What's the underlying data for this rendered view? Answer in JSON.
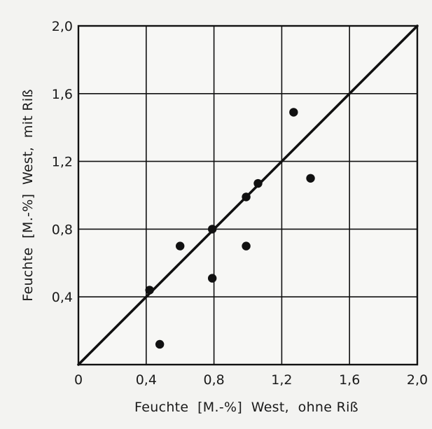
{
  "chart_data": {
    "type": "scatter",
    "title": "",
    "xlabel": "Feuchte  [M.-%]  West,  ohne Riß",
    "ylabel": "Feuchte  [M.-%]  West,  mit Riß",
    "xlim": [
      0,
      2.0
    ],
    "ylim": [
      0,
      2.0
    ],
    "xticks": [
      0,
      0.4,
      0.8,
      1.2,
      1.6,
      2.0
    ],
    "xtick_labels": [
      "0",
      "0,4",
      "0,8",
      "1,2",
      "1,6",
      "2,0"
    ],
    "yticks": [
      0.4,
      0.8,
      1.2,
      1.6,
      2.0
    ],
    "ytick_labels": [
      "0,4",
      "0,8",
      "1,2",
      "1,6",
      "2,0"
    ],
    "grid": true,
    "reference_line": {
      "from": [
        0,
        0
      ],
      "to": [
        2.0,
        2.0
      ]
    },
    "series": [
      {
        "points": [
          {
            "x": 0.42,
            "y": 0.44
          },
          {
            "x": 0.48,
            "y": 0.12
          },
          {
            "x": 0.6,
            "y": 0.7
          },
          {
            "x": 0.79,
            "y": 0.8
          },
          {
            "x": 0.79,
            "y": 0.51
          },
          {
            "x": 0.99,
            "y": 0.99
          },
          {
            "x": 0.99,
            "y": 0.7
          },
          {
            "x": 1.06,
            "y": 1.07
          },
          {
            "x": 1.27,
            "y": 1.49
          },
          {
            "x": 1.37,
            "y": 1.1
          }
        ]
      }
    ],
    "colors": {
      "ink": "#111111",
      "background": "#f3f3f1",
      "plot_background": "#f7f7f5"
    }
  }
}
